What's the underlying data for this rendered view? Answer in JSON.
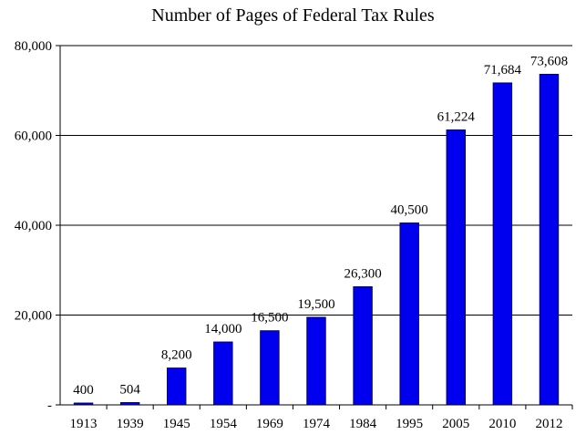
{
  "chart_data": {
    "type": "bar",
    "title": "Number of Pages of Federal Tax Rules",
    "xlabel": "",
    "ylabel": "",
    "categories": [
      "1913",
      "1939",
      "1945",
      "1954",
      "1969",
      "1974",
      "1984",
      "1995",
      "2005",
      "2010",
      "2012"
    ],
    "values": [
      400,
      504,
      8200,
      14000,
      16500,
      19500,
      26300,
      40500,
      61224,
      71684,
      73608
    ],
    "value_labels": [
      "400",
      "504",
      "8,200",
      "14,000",
      "16,500",
      "19,500",
      "26,300",
      "40,500",
      "61,224",
      "71,684",
      "73,608"
    ],
    "ylim": [
      0,
      80000
    ],
    "yticks": [
      0,
      20000,
      40000,
      60000,
      80000
    ],
    "ytick_labels": [
      "-",
      "20,000",
      "40,000",
      "60,000",
      "80,000"
    ],
    "grid": true,
    "legend": "none",
    "bar_color": "#0000ee",
    "bar_edge_color": "#00006a"
  }
}
